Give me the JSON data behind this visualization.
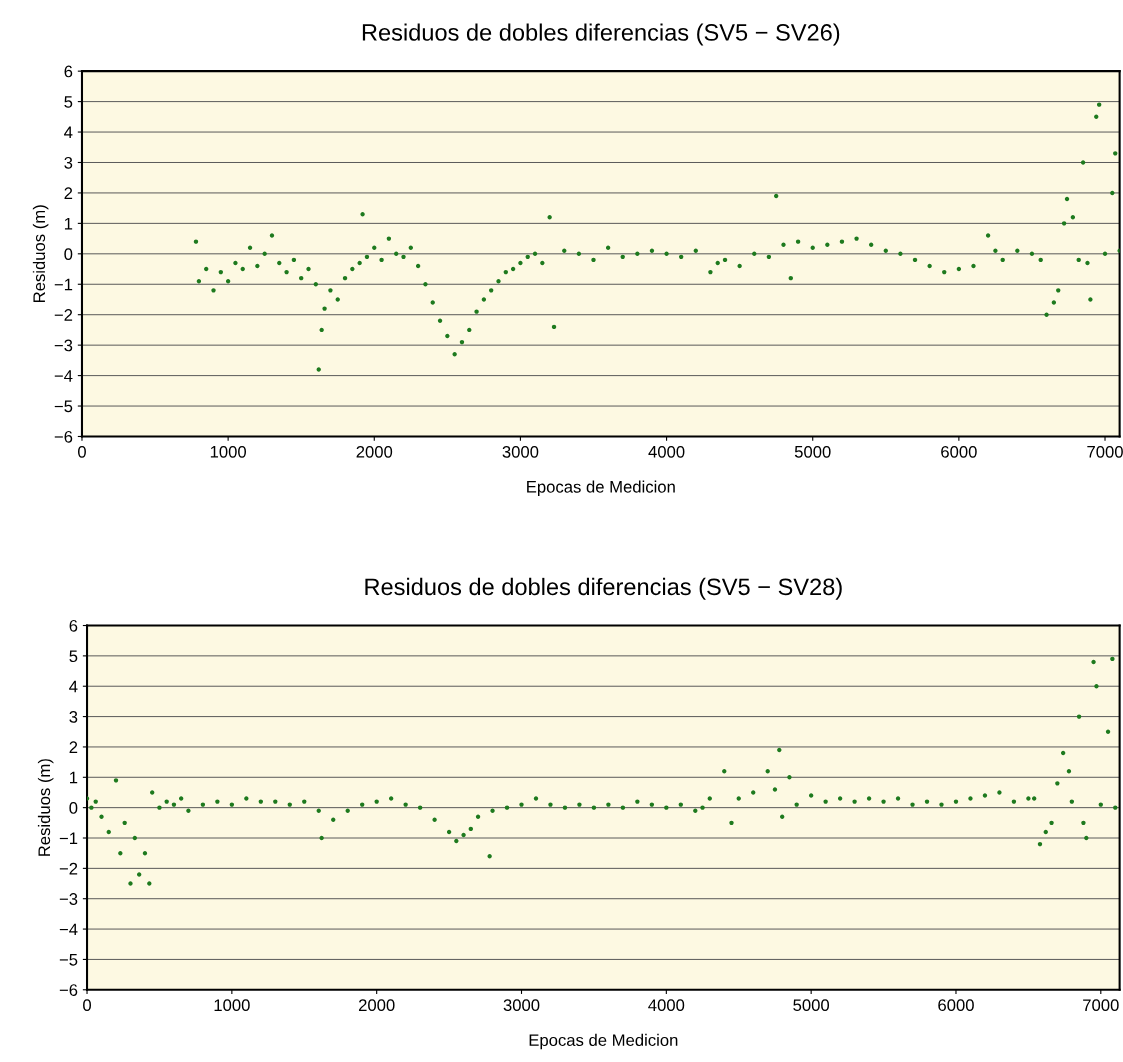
{
  "chart_data": [
    {
      "type": "scatter",
      "title": "Residuos de dobles diferencias (SV5 − SV26)",
      "xlabel": "Epocas de Medicion",
      "ylabel": "Residuos (m)",
      "xlim": [
        0,
        7100
      ],
      "xticks": [
        0,
        1000,
        2000,
        3000,
        4000,
        5000,
        6000,
        7000
      ],
      "ylim": [
        -6,
        6
      ],
      "yticks": [
        -6,
        -5,
        -4,
        -3,
        -2,
        -1,
        0,
        1,
        2,
        3,
        4,
        5,
        6
      ],
      "grid": "y",
      "marker": "circle",
      "series": [
        {
          "color": "#1e7a1e",
          "x": [
            780,
            800,
            850,
            900,
            950,
            1000,
            1050,
            1100,
            1150,
            1200,
            1250,
            1300,
            1350,
            1400,
            1450,
            1500,
            1550,
            1600,
            1620,
            1640,
            1660,
            1700,
            1750,
            1800,
            1850,
            1900,
            1920,
            1950,
            2000,
            2050,
            2100,
            2150,
            2200,
            2250,
            2300,
            2350,
            2400,
            2450,
            2500,
            2550,
            2600,
            2650,
            2700,
            2750,
            2800,
            2850,
            2900,
            2950,
            3000,
            3050,
            3100,
            3150,
            3200,
            3230,
            3300,
            3400,
            3500,
            3600,
            3700,
            3800,
            3900,
            4000,
            4100,
            4200,
            4300,
            4350,
            4400,
            4500,
            4600,
            4700,
            4750,
            4800,
            4850,
            4900,
            5000,
            5100,
            5200,
            5300,
            5400,
            5500,
            5600,
            5700,
            5800,
            5900,
            6000,
            6100,
            6200,
            6250,
            6300,
            6400,
            6500,
            6560,
            6600,
            6650,
            6680,
            6720,
            6740,
            6780,
            6820,
            6850,
            6880,
            6900,
            6940,
            6960,
            7000,
            7050,
            7070,
            7100
          ],
          "values": [
            0.4,
            -0.9,
            -0.5,
            -1.2,
            -0.6,
            -0.9,
            -0.3,
            -0.5,
            0.2,
            -0.4,
            0.0,
            0.6,
            -0.3,
            -0.6,
            -0.2,
            -0.8,
            -0.5,
            -1.0,
            -3.8,
            -2.5,
            -1.8,
            -1.2,
            -1.5,
            -0.8,
            -0.5,
            -0.3,
            1.3,
            -0.1,
            0.2,
            -0.2,
            0.5,
            0.0,
            -0.1,
            0.2,
            -0.4,
            -1.0,
            -1.6,
            -2.2,
            -2.7,
            -3.3,
            -2.9,
            -2.5,
            -1.9,
            -1.5,
            -1.2,
            -0.9,
            -0.6,
            -0.5,
            -0.3,
            -0.1,
            0.0,
            -0.3,
            1.2,
            -2.4,
            0.1,
            0.0,
            -0.2,
            0.2,
            -0.1,
            0.0,
            0.1,
            0.0,
            -0.1,
            0.1,
            -0.6,
            -0.3,
            -0.2,
            -0.4,
            0.0,
            -0.1,
            1.9,
            0.3,
            -0.8,
            0.4,
            0.2,
            0.3,
            0.4,
            0.5,
            0.3,
            0.1,
            0.0,
            -0.2,
            -0.4,
            -0.6,
            -0.5,
            -0.4,
            0.6,
            0.1,
            -0.2,
            0.1,
            0.0,
            -0.2,
            -2.0,
            -1.6,
            -1.2,
            1.0,
            1.8,
            1.2,
            -0.2,
            3.0,
            -0.3,
            -1.5,
            4.5,
            4.9,
            0.0,
            2.0,
            3.3,
            0.1
          ]
        }
      ]
    },
    {
      "type": "scatter",
      "title": "Residuos de dobles diferencias (SV5 − SV28)",
      "xlabel": "Epocas de Medicion",
      "ylabel": "Residuos (m)",
      "xlim": [
        0,
        7130
      ],
      "xticks": [
        0,
        1000,
        2000,
        3000,
        4000,
        5000,
        6000,
        7000
      ],
      "ylim": [
        -6,
        6
      ],
      "yticks": [
        -6,
        -5,
        -4,
        -3,
        -2,
        -1,
        0,
        1,
        2,
        3,
        4,
        5,
        6
      ],
      "grid": "y",
      "marker": "circle",
      "series": [
        {
          "color": "#1e7a1e",
          "x": [
            0,
            30,
            60,
            100,
            150,
            200,
            230,
            260,
            300,
            330,
            360,
            400,
            430,
            450,
            500,
            550,
            600,
            650,
            700,
            800,
            900,
            1000,
            1100,
            1200,
            1300,
            1400,
            1500,
            1600,
            1620,
            1700,
            1800,
            1900,
            2000,
            2100,
            2200,
            2300,
            2400,
            2500,
            2550,
            2600,
            2650,
            2700,
            2780,
            2800,
            2900,
            3000,
            3100,
            3200,
            3300,
            3400,
            3500,
            3600,
            3700,
            3800,
            3900,
            4000,
            4100,
            4200,
            4250,
            4300,
            4400,
            4450,
            4500,
            4600,
            4700,
            4750,
            4780,
            4800,
            4850,
            4900,
            5000,
            5100,
            5200,
            5300,
            5400,
            5500,
            5600,
            5700,
            5800,
            5900,
            6000,
            6100,
            6200,
            6300,
            6400,
            6500,
            6540,
            6580,
            6620,
            6660,
            6700,
            6740,
            6780,
            6800,
            6850,
            6880,
            6900,
            6950,
            6970,
            7000,
            7050,
            7080,
            7100
          ],
          "values": [
            0.3,
            0.0,
            0.2,
            -0.3,
            -0.8,
            0.9,
            -1.5,
            -0.5,
            -2.5,
            -1.0,
            -2.2,
            -1.5,
            -2.5,
            0.5,
            0.0,
            0.2,
            0.1,
            0.3,
            -0.1,
            0.1,
            0.2,
            0.1,
            0.3,
            0.2,
            0.2,
            0.1,
            0.2,
            -0.1,
            -1.0,
            -0.4,
            -0.1,
            0.1,
            0.2,
            0.3,
            0.1,
            0.0,
            -0.4,
            -0.8,
            -1.1,
            -0.9,
            -0.7,
            -0.3,
            -1.6,
            -0.1,
            0.0,
            0.1,
            0.3,
            0.1,
            0.0,
            0.1,
            0.0,
            0.1,
            0.0,
            0.2,
            0.1,
            0.0,
            0.1,
            -0.1,
            0.0,
            0.3,
            1.2,
            -0.5,
            0.3,
            0.5,
            1.2,
            0.6,
            1.9,
            -0.3,
            1.0,
            0.1,
            0.4,
            0.2,
            0.3,
            0.2,
            0.3,
            0.2,
            0.3,
            0.1,
            0.2,
            0.1,
            0.2,
            0.3,
            0.4,
            0.5,
            0.2,
            0.3,
            0.3,
            -1.2,
            -0.8,
            -0.5,
            0.8,
            1.8,
            1.2,
            0.2,
            3.0,
            -0.5,
            -1.0,
            4.8,
            4.0,
            0.1,
            2.5,
            4.9,
            0.0
          ]
        }
      ]
    }
  ]
}
